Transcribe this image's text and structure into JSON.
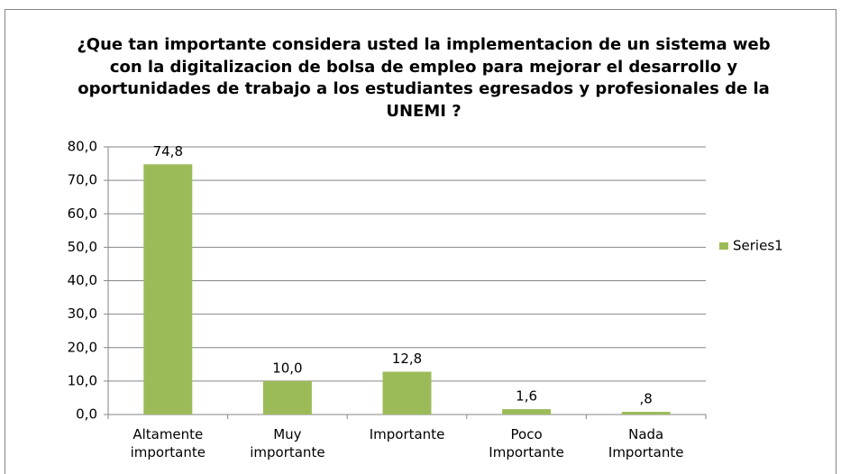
{
  "chart_data": {
    "type": "bar",
    "title": "¿Que tan importante considera usted la implementacion de un sistema web con la digitalizacion de bolsa de empleo para mejorar el desarrollo y oportunidades de trabajo a los estudiantes egresados y profesionales de la UNEMI ?",
    "categories": [
      "Altamente importante",
      "Muy importante",
      "Importante",
      "Poco Importante",
      "Nada Importante"
    ],
    "series": [
      {
        "name": "Series1",
        "color": "#9bbb59",
        "values": [
          74.8,
          10.0,
          12.8,
          1.6,
          0.8
        ],
        "value_labels": [
          "74,8",
          "10,0",
          "12,8",
          "1,6",
          ",8"
        ]
      }
    ],
    "ylim": [
      0,
      80
    ],
    "yticks": [
      {
        "value": 0,
        "label": "0,0"
      },
      {
        "value": 10,
        "label": "10,0"
      },
      {
        "value": 20,
        "label": "20,0"
      },
      {
        "value": 30,
        "label": "30,0"
      },
      {
        "value": 40,
        "label": "40,0"
      },
      {
        "value": 50,
        "label": "50,0"
      },
      {
        "value": 60,
        "label": "60,0"
      },
      {
        "value": 70,
        "label": "70,0"
      },
      {
        "value": 80,
        "label": "80,0"
      }
    ],
    "grid": true,
    "legend": "right"
  }
}
